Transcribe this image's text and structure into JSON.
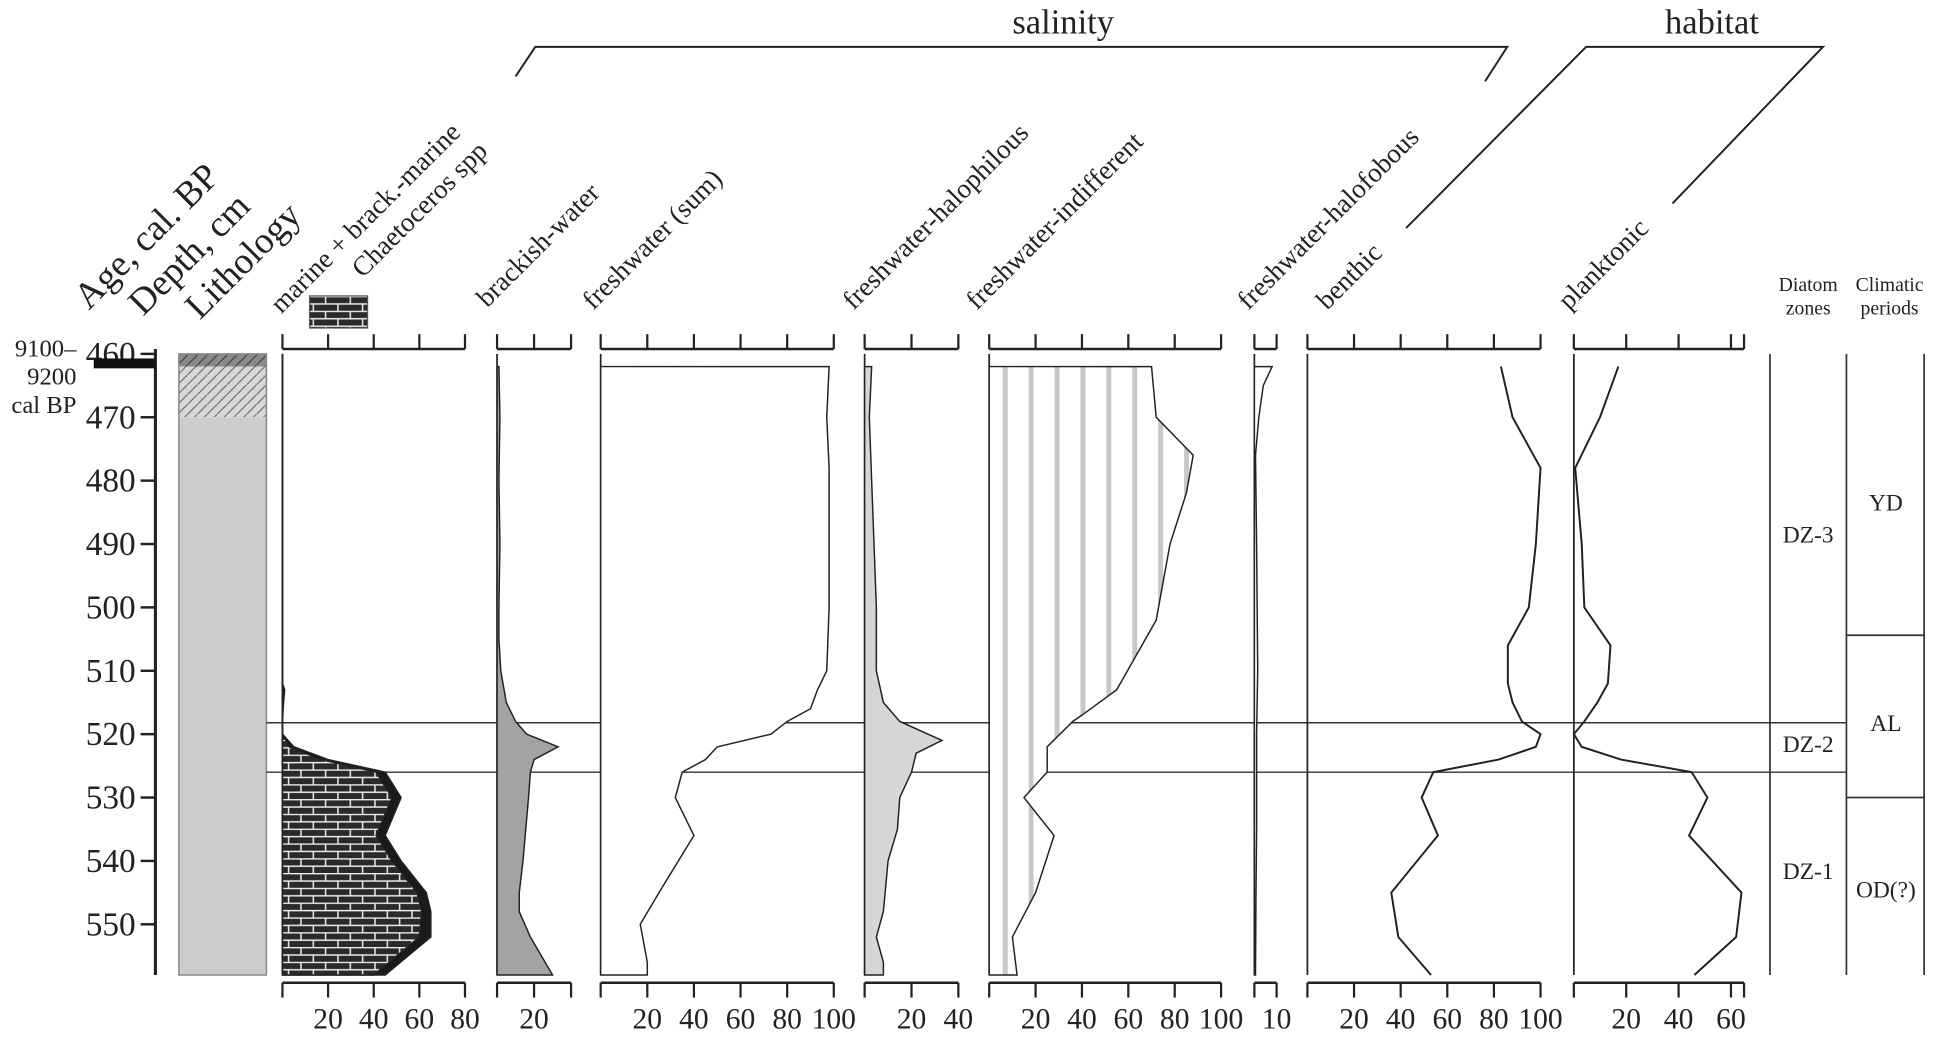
{
  "chart_data": {
    "type": "area",
    "depth_axis": {
      "label": "Depth, cm",
      "range": [
        460,
        558
      ],
      "ticks": [
        460,
        470,
        480,
        490,
        500,
        510,
        520,
        530,
        540,
        550
      ]
    },
    "age_label": "Age, cal. BP",
    "age_marker": {
      "depth": 461.5,
      "lines": [
        "9100–",
        "9200",
        "cal BP"
      ]
    },
    "lithology": {
      "label": "Lithology",
      "units": [
        {
          "from": 460,
          "to": 462,
          "style": "dark-hatched"
        },
        {
          "from": 462,
          "to": 470,
          "style": "light-hatched"
        },
        {
          "from": 470,
          "to": 558,
          "style": "gray"
        }
      ]
    },
    "groups": [
      {
        "label": "salinity"
      },
      {
        "label": "habitat"
      }
    ],
    "legend": {
      "brick_label": "Chaetoceros spp"
    },
    "panels": [
      {
        "id": "marine",
        "label": "marine + brack.-marine",
        "xlim": [
          0,
          80
        ],
        "tick_labels": [
          20,
          40,
          60,
          80
        ],
        "series": [
          {
            "name": "marine + brack.-marine",
            "depths": [
              460,
              512,
              513,
              515,
              518,
              520,
              522,
              524,
              526,
              530,
              536,
              540,
              545,
              548,
              552,
              555,
              558
            ],
            "values": [
              0,
              0,
              1,
              0.5,
              0,
              0,
              5,
              20,
              45,
              52,
              45,
              52,
              63,
              65,
              65,
              55,
              45
            ]
          },
          {
            "name": "Chaetoceros spp",
            "depths": [
              460,
              518,
              520,
              522,
              524,
              526,
              530,
              536,
              540,
              545,
              548,
              552,
              555,
              558
            ],
            "values": [
              0,
              0,
              0,
              3,
              17,
              41,
              48,
              41,
              48,
              59,
              61,
              60,
              50,
              40
            ]
          }
        ]
      },
      {
        "id": "brackish",
        "label": "brackish-water",
        "xlim": [
          0,
          40
        ],
        "tick_labels": [
          20
        ],
        "depths": [
          462,
          470,
          480,
          490,
          500,
          505,
          510,
          515,
          518,
          520,
          522,
          524,
          526,
          530,
          540,
          545,
          548,
          552,
          558
        ],
        "values": [
          1,
          1.5,
          1,
          1.5,
          1,
          1,
          2,
          5,
          10,
          16,
          33,
          20,
          18,
          17,
          14,
          12,
          12,
          18,
          30
        ]
      },
      {
        "id": "freshwater-sum",
        "label": "freshwater (sum)",
        "xlim": [
          0,
          100
        ],
        "tick_labels": [
          20,
          40,
          60,
          80,
          100
        ],
        "depths": [
          462,
          470,
          478,
          490,
          500,
          510,
          513,
          516,
          518,
          520,
          522,
          524,
          526,
          530,
          536,
          545,
          550,
          556,
          558
        ],
        "values": [
          98,
          97,
          98,
          98,
          98,
          97,
          93,
          90,
          80,
          73,
          50,
          45,
          35,
          32,
          40,
          25,
          17,
          20,
          20
        ]
      },
      {
        "id": "halophilous",
        "label": "freshwater-halophilous",
        "xlim": [
          0,
          40
        ],
        "tick_labels": [
          20,
          40
        ],
        "depths": [
          462,
          470,
          480,
          490,
          500,
          510,
          515,
          518,
          521,
          523,
          526,
          530,
          535,
          540,
          548,
          552,
          556,
          558
        ],
        "values": [
          3,
          2,
          3,
          4,
          5,
          5,
          8,
          15,
          33,
          22,
          20,
          15,
          14,
          10,
          8,
          5,
          8,
          8
        ]
      },
      {
        "id": "indifferent",
        "label": "freshwater-indifferent",
        "xlim": [
          0,
          100
        ],
        "tick_labels": [
          20,
          40,
          60,
          80,
          100
        ],
        "depths": [
          462,
          470,
          476,
          482,
          490,
          502,
          513,
          517,
          518,
          522,
          526,
          530,
          536,
          545,
          552,
          558
        ],
        "values": [
          70,
          72,
          88,
          85,
          78,
          72,
          55,
          40,
          36,
          25,
          25,
          15,
          28,
          20,
          10,
          12
        ]
      },
      {
        "id": "halofobous",
        "label": "freshwater-halofobous",
        "xlim": [
          0,
          10
        ],
        "tick_labels": [
          10
        ],
        "depths": [
          462,
          465,
          470,
          476,
          490,
          510,
          520,
          535,
          545,
          558
        ],
        "values": [
          8,
          4,
          2,
          0.5,
          1,
          1.5,
          1,
          1,
          0.7,
          0.5
        ]
      },
      {
        "id": "benthic",
        "label": "benthic",
        "xlim": [
          0,
          100
        ],
        "tick_labels": [
          20,
          40,
          60,
          80,
          100
        ],
        "depths": [
          462,
          470,
          478,
          490,
          500,
          506,
          512,
          515,
          518,
          520,
          522,
          524,
          526,
          530,
          536,
          545,
          552,
          558
        ],
        "values": [
          83,
          88,
          100,
          98,
          95,
          86,
          86,
          88,
          92,
          100,
          98,
          82,
          54,
          49,
          56,
          36,
          39,
          53
        ]
      },
      {
        "id": "planktonic",
        "label": "planktonic",
        "xlim": [
          0,
          65
        ],
        "tick_labels": [
          20,
          40,
          60
        ],
        "depths": [
          462,
          470,
          478,
          490,
          500,
          506,
          512,
          515,
          518,
          520,
          522,
          524,
          526,
          530,
          536,
          545,
          552,
          558
        ],
        "values": [
          17,
          10,
          0.5,
          3,
          4,
          14,
          13,
          9,
          4,
          0,
          3,
          18,
          45,
          51,
          44,
          64,
          62,
          46
        ]
      }
    ],
    "diatom_zones": {
      "label_lines": [
        "Diatom",
        "zones"
      ],
      "boundaries": [
        518.2,
        526
      ],
      "zones": [
        {
          "name": "DZ-3",
          "from": 460,
          "to": 518.2
        },
        {
          "name": "DZ-2",
          "from": 518.2,
          "to": 526
        },
        {
          "name": "DZ-1",
          "from": 526,
          "to": 558
        }
      ]
    },
    "climatic_periods": {
      "label_lines": [
        "Climatic",
        "periods"
      ],
      "boundaries": [
        504.4,
        530
      ],
      "periods": [
        {
          "name": "YD",
          "from": 460,
          "to": 504.4
        },
        {
          "name": "AL",
          "from": 504.4,
          "to": 530
        },
        {
          "name": "OD(?)",
          "from": 530,
          "to": 558
        }
      ]
    },
    "colors": {
      "line": "#222222",
      "lithology_gray": "#cccccc",
      "brackish_fill": "#a3a3a3",
      "halophilous_fill": "#d6d6d6",
      "indifferent_stripes": "#c8c8c8",
      "marine_total": "#1a1a1a"
    }
  }
}
